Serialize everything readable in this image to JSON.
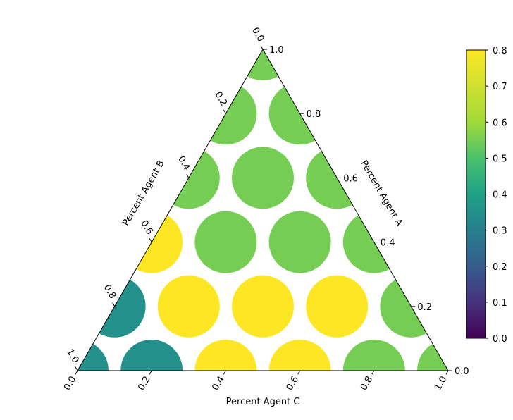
{
  "chart_data": {
    "type": "scatter",
    "subtype": "ternary",
    "marker": "circle",
    "axes": {
      "bottom": {
        "label": "Percent Agent C",
        "ticks": [
          0.0,
          0.2,
          0.4,
          0.6,
          0.8,
          1.0
        ],
        "tick_labels": [
          "0.0",
          "0.2",
          "0.4",
          "0.6",
          "0.8",
          "1.0"
        ]
      },
      "left": {
        "label": "Percent Agent B",
        "ticks": [
          0.0,
          0.2,
          0.4,
          0.6,
          0.8,
          1.0
        ],
        "tick_labels": [
          "0.0",
          "0.2",
          "0.4",
          "0.6",
          "0.8",
          "1.0"
        ]
      },
      "right": {
        "label": "Percent Agent A",
        "ticks": [
          0.0,
          0.2,
          0.4,
          0.6,
          0.8,
          1.0
        ],
        "tick_labels": [
          "0.0",
          "0.2",
          "0.4",
          "0.6",
          "0.8",
          "1.0"
        ]
      }
    },
    "colorbar": {
      "colormap": "viridis",
      "range": [
        0.0,
        0.8
      ],
      "ticks": [
        0.0,
        0.1,
        0.2,
        0.3,
        0.4,
        0.5,
        0.6,
        0.7,
        0.8
      ],
      "tick_labels": [
        "0.0",
        "0.1",
        "0.2",
        "0.3",
        "0.4",
        "0.5",
        "0.6",
        "0.7",
        "0.8"
      ],
      "label": ""
    },
    "points": [
      {
        "a": 0.0,
        "b": 1.0,
        "c": 0.0,
        "value": 0.35
      },
      {
        "a": 0.0,
        "b": 0.8,
        "c": 0.2,
        "value": 0.35
      },
      {
        "a": 0.0,
        "b": 0.6,
        "c": 0.4,
        "value": 0.8
      },
      {
        "a": 0.0,
        "b": 0.4,
        "c": 0.6,
        "value": 0.8
      },
      {
        "a": 0.0,
        "b": 0.2,
        "c": 0.8,
        "value": 0.55
      },
      {
        "a": 0.0,
        "b": 0.0,
        "c": 1.0,
        "value": 0.55
      },
      {
        "a": 0.2,
        "b": 0.8,
        "c": 0.0,
        "value": 0.35
      },
      {
        "a": 0.2,
        "b": 0.6,
        "c": 0.2,
        "value": 0.8
      },
      {
        "a": 0.2,
        "b": 0.4,
        "c": 0.4,
        "value": 0.8
      },
      {
        "a": 0.2,
        "b": 0.2,
        "c": 0.6,
        "value": 0.8
      },
      {
        "a": 0.2,
        "b": 0.0,
        "c": 0.8,
        "value": 0.55
      },
      {
        "a": 0.4,
        "b": 0.6,
        "c": 0.0,
        "value": 0.8
      },
      {
        "a": 0.4,
        "b": 0.4,
        "c": 0.2,
        "value": 0.55
      },
      {
        "a": 0.4,
        "b": 0.2,
        "c": 0.4,
        "value": 0.55
      },
      {
        "a": 0.4,
        "b": 0.0,
        "c": 0.6,
        "value": 0.55
      },
      {
        "a": 0.6,
        "b": 0.4,
        "c": 0.0,
        "value": 0.55
      },
      {
        "a": 0.6,
        "b": 0.2,
        "c": 0.2,
        "value": 0.55
      },
      {
        "a": 0.6,
        "b": 0.0,
        "c": 0.4,
        "value": 0.55
      },
      {
        "a": 0.8,
        "b": 0.2,
        "c": 0.0,
        "value": 0.55
      },
      {
        "a": 0.8,
        "b": 0.0,
        "c": 0.2,
        "value": 0.55
      },
      {
        "a": 1.0,
        "b": 0.0,
        "c": 0.0,
        "value": 0.55
      }
    ]
  }
}
